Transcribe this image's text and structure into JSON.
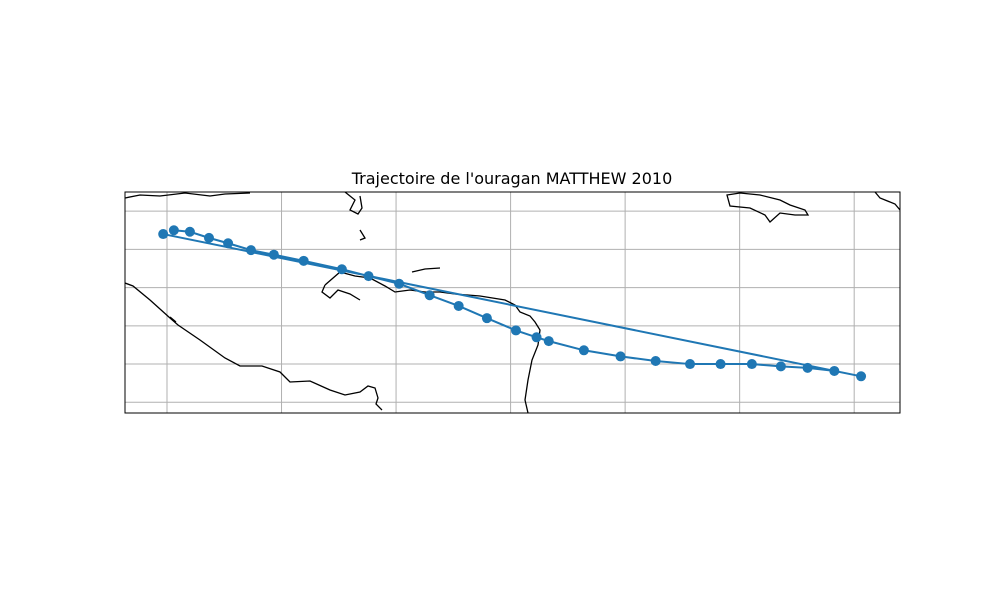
{
  "chart_data": {
    "type": "track",
    "title": "Trajectoire de l'ouragan MATTHEW 2010",
    "xlim": [
      -100.5,
      1.0
    ],
    "ylim": [
      3.6,
      32.5
    ],
    "xticks": [
      -95,
      -80,
      -65,
      -50,
      -35,
      -20,
      -5
    ],
    "yticks": [
      5,
      10,
      15,
      20,
      25,
      30
    ],
    "grid": true,
    "color": "#1f77b4",
    "x": [
      -94.1,
      -92.0,
      -89.5,
      -87.0,
      -84.0,
      -81.0,
      -77.1,
      -72.1,
      -68.6,
      -64.6,
      -60.6,
      -56.8,
      -53.1,
      -49.3,
      -46.6,
      -45.0,
      -40.4,
      -35.6,
      -31.0,
      -26.5,
      -22.5,
      -18.4,
      -14.6,
      -11.1,
      -7.6,
      -4.1,
      -95.5
    ],
    "values": [
      27.5,
      27.3,
      26.5,
      25.8,
      24.9,
      24.3,
      23.5,
      22.4,
      21.5,
      20.5,
      19.0,
      17.6,
      16.0,
      14.4,
      13.5,
      13.0,
      11.8,
      11.0,
      10.4,
      10.0,
      10.0,
      10.0,
      9.7,
      9.5,
      9.1,
      8.4,
      27.0
    ]
  }
}
